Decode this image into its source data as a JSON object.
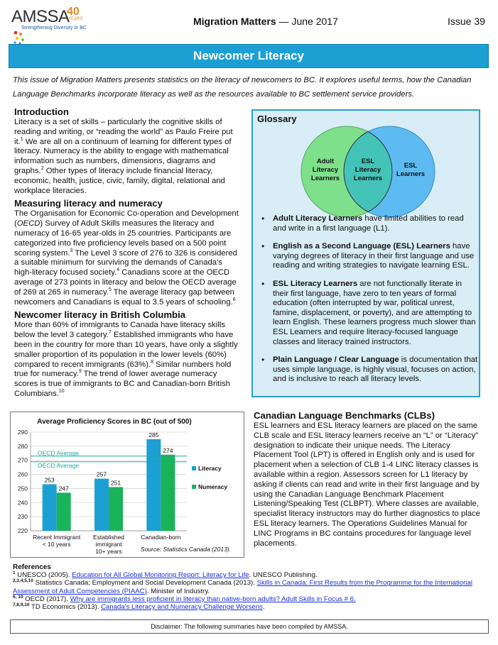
{
  "header": {
    "logo_text": "AMSSA",
    "logo_40": "40",
    "logo_years": "YEARS",
    "logo_tagline": "Strengthening Diversity In BC",
    "title_bold": "Migration Matters",
    "title_rest": " — June 2017",
    "issue": "Issue 39"
  },
  "banner": {
    "title": "Newcomer Literacy"
  },
  "intro": "This issue of Migration Matters presents statistics on the literacy of newcomers to BC. It explores useful terms, how the Canadian Language Benchmarks incorporate literacy as well as the resources available to BC settlement service providers.",
  "introduction": {
    "heading": "Introduction",
    "t1": "Literacy is a set of skills – particularly the cognitive skills of reading and writing, or “reading the world” as Paulo Freire put it.",
    "s1": "1",
    "t2": " We are all on a continuum of learning for different types of literacy. Numeracy is the ability to engage with mathematical information such as numbers, dimensions, diagrams and graphs.",
    "s2": "2",
    "t3": " Other types of literacy include financial literacy, economic, health, justice, civic, family, digital, relational and workplace literacies."
  },
  "measuring": {
    "heading": "Measuring literacy and numeracy",
    "t1": "The Organisation for Economic Co-operation and Development (",
    "t1i": "OECD",
    "t1b": ") Survey of Adult Skills measures the literacy and numeracy of 16-65 year-olds in 25 countries. Participants are categorized into five proficiency levels based on a 500 point scoring system.",
    "s1": "3",
    "t2": " The Level 3 score of 276 to 326 is considered a suitable minimum for surviving the demands of Canada's high-literacy focused society.",
    "s2": "4",
    "t3": " Canadians score at the OECD average of 273 points in literacy and below the OECD average of 269 at 265 in numeracy.",
    "s3": "5",
    "t4": " The average literacy gap between newcomers and Canadians is equal to 3.5 years of schooling.",
    "s4": "6"
  },
  "bc": {
    "heading": "Newcomer literacy in British Columbia",
    "t1": "More than 60% of immigrants to Canada have literacy skills below the level 3 category.",
    "s1": "7",
    "t2": " Established immigrants who have been in the country for more than 10 years, have only a slightly smaller proportion of its population in the lower levels (60%) compared to recent immigrants (63%).",
    "s2": "8",
    "t3": " Similar numbers hold true for numeracy.",
    "s3": "9",
    "t4": " The trend of lower average numeracy scores is true of immigrants to BC and Canadian-born British Columbians.",
    "s4": "10"
  },
  "glossary": {
    "title": "Glossary",
    "venn": {
      "left": [
        "Adult",
        "Literacy",
        "Learners"
      ],
      "middle": [
        "ESL",
        "Literacy",
        "Learners"
      ],
      "right": [
        "ESL",
        "Learners"
      ],
      "left_color": "#7fe08c",
      "right_color": "#4cb4f0",
      "overlap_color": "#44c4b8"
    },
    "items": [
      {
        "term": "Adult Literacy Learners",
        "text": " have limited abilities to read and write in a first language (L1)."
      },
      {
        "term": "English as a Second Language (ESL) Learners",
        "text": " have varying degrees of literacy in their first language and use reading and writing strategies to navigate learning ESL."
      },
      {
        "term": "ESL Literacy Learners",
        "text": " are not functionally literate in their first language, have zero to ten years of formal education (often interrupted by war, political unrest, famine, displacement, or poverty), and are attempting to learn English. These learners progress much slower than ESL Learners and require literacy-focused language classes and literacy trained instructors."
      },
      {
        "term": "Plain Language / Clear Language",
        "text": " is documentation that uses simple language, is highly visual, focuses on action, and is inclusive to reach all literacy levels."
      }
    ]
  },
  "chart_data": {
    "type": "bar",
    "title": "Average Proficiency Scores in BC (out of 500)",
    "categories": [
      [
        "Recent Immigrant",
        "< 10 years"
      ],
      [
        "Established",
        "immigrant",
        "10+ years"
      ],
      [
        "Canadian-born"
      ]
    ],
    "series": [
      {
        "name": "Literacy",
        "values": [
          253,
          257,
          285
        ],
        "color": "#1ca0d4"
      },
      {
        "name": "Numeracy",
        "values": [
          247,
          251,
          274
        ],
        "color": "#19b35a"
      }
    ],
    "ylim": [
      220,
      290
    ],
    "yticks": [
      220,
      230,
      240,
      250,
      260,
      270,
      280,
      290
    ],
    "reference_lines": [
      {
        "label": "OECD Average",
        "value": 273
      },
      {
        "label": "OECD Average",
        "value": 269
      }
    ],
    "reference_color": "#19a89a",
    "legend_position": "right",
    "grid": true,
    "source": "Source: Statistics Canada (2013)."
  },
  "clb": {
    "heading": "Canadian Language Benchmarks (CLBs)",
    "text": "ESL learners and ESL literacy learners are placed on the same CLB scale and ESL literacy learners receive an “L” or “Literacy” designation to indicate their unique needs. The Literacy Placement Tool (LPT) is offered in English only and is used for placement when a selection of CLB 1-4 LINC literacy classes is available within a region. Assessors screen for L1 literacy by asking if clients can read and write in their first language and by using the Canadian Language Benchmark Placement Listening/Speaking Test (CLBPT). Where classes are available, specialist literacy instructors may do further diagnostics to place ESL literacy learners. The Operations Guidelines Manual for LINC Programs in BC contains procedures for language level placements."
  },
  "references": {
    "heading": "References",
    "items": [
      {
        "sup": "1",
        "pre": " UNESCO (2005). ",
        "link": "Education for All Global Monitoring Report: Literacy for Life",
        "post": ". UNESCO Publishing."
      },
      {
        "sup": "2,3,4,5,10",
        "pre": " Statistics Canada; Employment and Social Development Canada (2013). ",
        "link": "Skills in Canada: First Results from the Programme for the International Assessment of Adult Competencies (PIAAC)",
        "post": ". Minister of Industry."
      },
      {
        "sup": "6, 10",
        "pre": " OECD (2017). ",
        "link": "Why are immigrants less proficient in literacy than native-born adults? Adult Skills in Focus # 6.",
        "post": ""
      },
      {
        "sup": "7,8,9,10",
        "pre": " TD Economics (2013). ",
        "link": "Canada's Literacy and Numeracy Challenge Worsens",
        "post": "."
      }
    ]
  },
  "disclaimer": "Disclaimer: The following summaries have been compiled by AMSSA."
}
